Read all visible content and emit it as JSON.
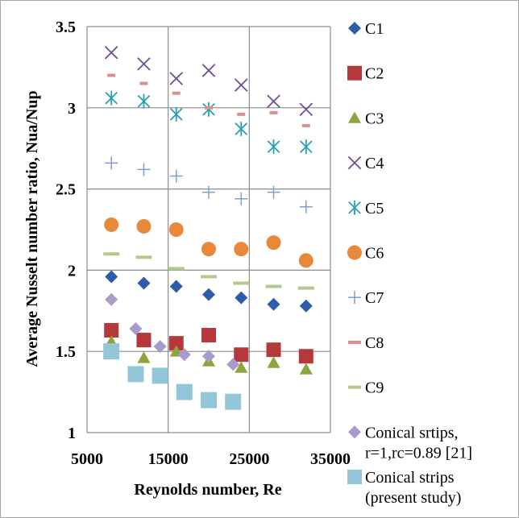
{
  "chart_data": {
    "type": "scatter",
    "xlabel": "Reynolds number, Re",
    "ylabel": "Average Nusselt number ratio, Nua/Nup",
    "xlim": [
      5000,
      35000
    ],
    "ylim": [
      1,
      3.5
    ],
    "x_ticks": [
      "5000",
      "15000",
      "25000",
      "35000"
    ],
    "y_ticks": [
      "1",
      "1.5",
      "2",
      "2.5",
      "3",
      "3.5"
    ],
    "grid": true,
    "legend_position": "right",
    "series": [
      {
        "name": "C1",
        "marker": "diamond",
        "color": "#2e5ca8",
        "x": [
          8000,
          12000,
          16000,
          20000,
          24000,
          28000,
          32000
        ],
        "y": [
          1.96,
          1.92,
          1.9,
          1.85,
          1.83,
          1.79,
          1.78
        ]
      },
      {
        "name": "C2",
        "marker": "square",
        "color": "#b5393a",
        "x": [
          8000,
          12000,
          16000,
          20000,
          24000,
          28000,
          32000
        ],
        "y": [
          1.63,
          1.57,
          1.55,
          1.6,
          1.48,
          1.51,
          1.47
        ]
      },
      {
        "name": "C3",
        "marker": "triangle",
        "color": "#8aa63d",
        "x": [
          8000,
          12000,
          16000,
          20000,
          24000,
          28000,
          32000
        ],
        "y": [
          1.56,
          1.46,
          1.5,
          1.44,
          1.4,
          1.43,
          1.39
        ]
      },
      {
        "name": "C4",
        "marker": "x",
        "color": "#6d4f94",
        "x": [
          8000,
          12000,
          16000,
          20000,
          24000,
          28000,
          32000
        ],
        "y": [
          3.34,
          3.27,
          3.18,
          3.23,
          3.14,
          3.04,
          2.99
        ]
      },
      {
        "name": "C5",
        "marker": "asterisk",
        "color": "#2aa0b4",
        "x": [
          8000,
          12000,
          16000,
          20000,
          24000,
          28000,
          32000
        ],
        "y": [
          3.06,
          3.04,
          2.96,
          2.99,
          2.87,
          2.76,
          2.76
        ]
      },
      {
        "name": "C6",
        "marker": "circle",
        "color": "#e8883a",
        "x": [
          8000,
          12000,
          16000,
          20000,
          24000,
          28000,
          32000
        ],
        "y": [
          2.28,
          2.27,
          2.25,
          2.13,
          2.13,
          2.17,
          2.06
        ]
      },
      {
        "name": "C7",
        "marker": "plus",
        "color": "#7f9fcf",
        "x": [
          8000,
          12000,
          16000,
          20000,
          24000,
          28000,
          32000
        ],
        "y": [
          2.66,
          2.62,
          2.58,
          2.48,
          2.44,
          2.48,
          2.39
        ]
      },
      {
        "name": "C8",
        "marker": "dash",
        "color": "#d98f8f",
        "x": [
          8000,
          12000,
          16000,
          20000,
          24000,
          28000,
          32000
        ],
        "y": [
          3.2,
          3.15,
          3.09,
          3.0,
          2.96,
          2.97,
          2.89
        ]
      },
      {
        "name": "C9",
        "marker": "dash",
        "color": "#b3c98c",
        "x": [
          8000,
          12000,
          16000,
          20000,
          24000,
          28000,
          32000
        ],
        "y": [
          2.1,
          2.08,
          2.01,
          1.96,
          1.92,
          1.9,
          1.89
        ]
      },
      {
        "name": "Conical srtips, r=1,rc=0.89 [21]",
        "marker": "diamond",
        "color": "#a99bca",
        "x": [
          8000,
          11000,
          14000,
          17000,
          20000,
          23000
        ],
        "y": [
          1.82,
          1.64,
          1.53,
          1.48,
          1.47,
          1.42
        ]
      },
      {
        "name": "Conical strips (present study)",
        "marker": "square",
        "color": "#93c6d8",
        "x": [
          8000,
          11000,
          14000,
          17000,
          20000,
          23000
        ],
        "y": [
          1.5,
          1.36,
          1.35,
          1.25,
          1.2,
          1.19
        ]
      }
    ],
    "legend": {
      "entries": [
        {
          "lines": [
            "C1"
          ]
        },
        {
          "lines": [
            "C2"
          ]
        },
        {
          "lines": [
            "C3"
          ]
        },
        {
          "lines": [
            "C4"
          ]
        },
        {
          "lines": [
            "C5"
          ]
        },
        {
          "lines": [
            "C6"
          ]
        },
        {
          "lines": [
            "C7"
          ]
        },
        {
          "lines": [
            "C8"
          ]
        },
        {
          "lines": [
            "C9"
          ]
        },
        {
          "lines": [
            "Conical srtips,",
            "r=1,rc=0.89 [21]"
          ]
        },
        {
          "lines": [
            "Conical strips",
            "(present study)"
          ]
        }
      ]
    }
  }
}
